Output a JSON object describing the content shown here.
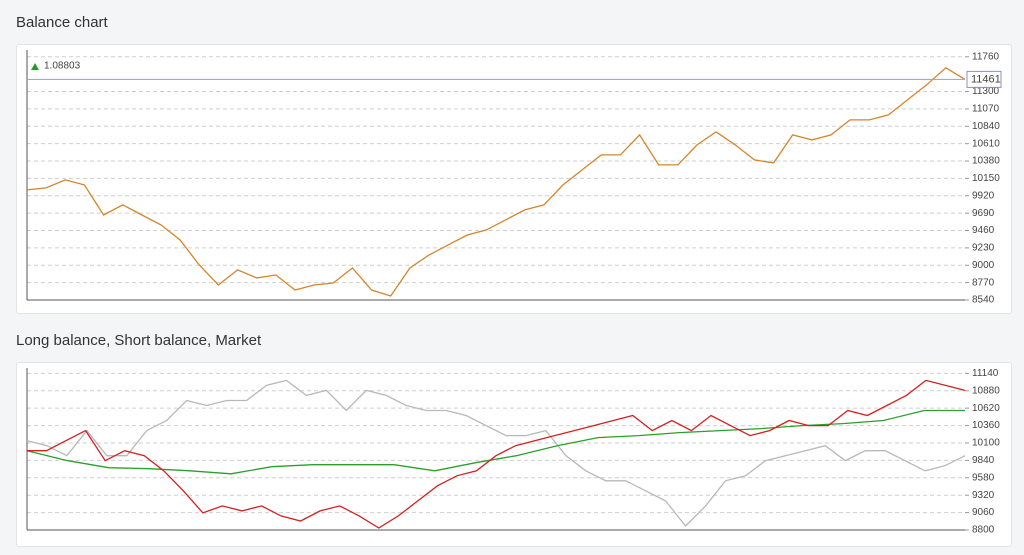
{
  "chart_data": [
    {
      "type": "line",
      "title": "Balance chart",
      "annotation": "1.08803",
      "current_value": 11461,
      "ylim": [
        8540,
        11850
      ],
      "yticks": [
        8540,
        8770,
        9000,
        9230,
        9460,
        9690,
        9920,
        10150,
        10380,
        10610,
        10840,
        11070,
        11300,
        11760
      ],
      "grid": true,
      "series": [
        {
          "color": "#d4852a",
          "values": [
            9998,
            10024,
            10130,
            10064,
            9666,
            9799,
            9666,
            9534,
            9335,
            9004,
            8739,
            8938,
            8832,
            8871,
            8672,
            8739,
            8765,
            8964,
            8672,
            8593,
            8964,
            9136,
            9269,
            9401,
            9468,
            9600,
            9733,
            9799,
            10064,
            10263,
            10461,
            10461,
            10726,
            10329,
            10329,
            10594,
            10766,
            10594,
            10395,
            10355,
            10726,
            10660,
            10726,
            10925,
            10925,
            10991,
            11190,
            11389,
            11614,
            11461
          ]
        }
      ]
    },
    {
      "type": "line",
      "title": "Long balance, Short balance, Market",
      "ylim": [
        8800,
        11220
      ],
      "yticks": [
        8800,
        9060,
        9320,
        9580,
        9840,
        10100,
        10360,
        10620,
        10880,
        11140
      ],
      "grid": true,
      "series": [
        {
          "color": "#b8b8b8",
          "values": [
            10135,
            10060,
            9910,
            10285,
            9910,
            9910,
            10285,
            10435,
            10735,
            10660,
            10735,
            10735,
            10960,
            11035,
            10810,
            10885,
            10585,
            10885,
            10810,
            10660,
            10585,
            10585,
            10510,
            10360,
            10210,
            10210,
            10285,
            9910,
            9685,
            9535,
            9535,
            9385,
            9235,
            8860,
            9160,
            9535,
            9610,
            9835,
            9910,
            9985,
            10060,
            9835,
            9985,
            9985,
            9835,
            9685,
            9760,
            9910
          ]
        },
        {
          "color": "#2aa02a",
          "values": [
            9985,
            9835,
            9730,
            9715,
            9685,
            9640,
            9745,
            9775,
            9775,
            9775,
            9685,
            9805,
            9910,
            10060,
            10180,
            10210,
            10255,
            10285,
            10315,
            10360,
            10390,
            10435,
            10585,
            10585
          ]
        },
        {
          "color": "#d42020",
          "values": [
            9985,
            9985,
            10135,
            10285,
            9835,
            9985,
            9910,
            9685,
            9385,
            9055,
            9160,
            9085,
            9160,
            9010,
            8935,
            9085,
            9160,
            9010,
            8830,
            9010,
            9235,
            9460,
            9610,
            9685,
            9910,
            10060,
            10135,
            10210,
            10285,
            10360,
            10435,
            10510,
            10285,
            10435,
            10285,
            10510,
            10360,
            10210,
            10285,
            10435,
            10360,
            10360,
            10585,
            10510,
            10660,
            10810,
            11035,
            10960,
            10885
          ]
        }
      ]
    }
  ]
}
